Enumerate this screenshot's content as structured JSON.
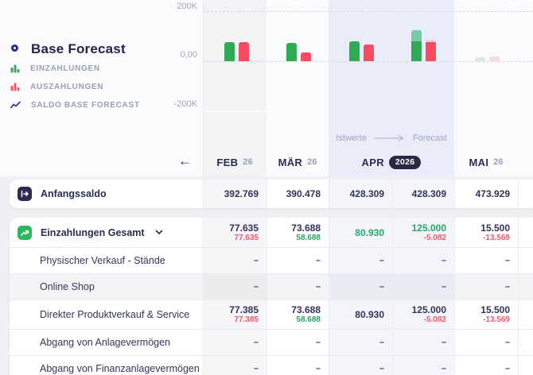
{
  "panel": {
    "title": "Base Forecast",
    "legend": [
      {
        "label": "EINZAHLUNGEN",
        "icon": "bars-green"
      },
      {
        "label": "AUSZAHLUNGEN",
        "icon": "bars-red"
      },
      {
        "label": "SALDO BASE FORECAST",
        "icon": "saldo-line"
      }
    ],
    "y_axis": {
      "top": "200K",
      "zero": "0,00",
      "bottom": "-200K"
    },
    "back_arrow": "←"
  },
  "header": {
    "istwerte_label": "Istwerte",
    "forecast_label": "Forecast",
    "columns": [
      {
        "month": "FEB",
        "year": "26"
      },
      {
        "month": "MÄR",
        "year": "26"
      },
      {
        "month": "APR",
        "badge": "2026"
      },
      {
        "month": "MAI",
        "year": "26"
      }
    ]
  },
  "colors": {
    "green_bar": "#2fab55",
    "teal_bar": "#76cba6",
    "red_bar": "#f94b61",
    "pink_bar": "#f9ccd4",
    "faint_green_bar": "#d4eee0",
    "faint_pink_bar": "#fadbe1",
    "green_text": "#27a567",
    "red_text": "#f4566d",
    "navy": "#2b2b52",
    "apr_band": "#e9edf9"
  },
  "chart_data": {
    "type": "bar",
    "title": "Base Forecast",
    "categories": [
      "FEB 26",
      "MÄR 26",
      "APR 2026 Istwerte",
      "APR 2026 Forecast",
      "MAI 26"
    ],
    "series": [
      {
        "name": "Einzahlungen",
        "values": [
          77635,
          73688,
          80930,
          125000,
          15500
        ]
      },
      {
        "name": "Auszahlungen (estimated from bar heights)",
        "values": [
          77635,
          35000,
          67000,
          84000,
          20000
        ]
      }
    ],
    "ylabel_ticks": [
      "200K",
      "0,00",
      "-200K"
    ],
    "ylim": [
      -200000,
      250000
    ],
    "grid": "dashed horizontal",
    "legend_position": "left",
    "bars": [
      {
        "center": 297,
        "ein": [
          [
            77635,
            "green"
          ]
        ],
        "aus": [
          [
            77635,
            "red"
          ]
        ]
      },
      {
        "center": 375,
        "ein": [
          [
            73688,
            "green"
          ]
        ],
        "aus": [
          [
            35000,
            "red"
          ]
        ]
      },
      {
        "center": 454,
        "ein": [
          [
            80930,
            "green"
          ]
        ],
        "aus": [
          [
            67000,
            "red"
          ]
        ]
      },
      {
        "center": 532,
        "ein": [
          [
            80930,
            "green"
          ],
          [
            44070,
            "teal"
          ]
        ],
        "aus": [
          [
            75000,
            "red"
          ],
          [
            9000,
            "pink"
          ]
        ]
      },
      {
        "center": 612,
        "ein": [
          [
            15500,
            "faint_green"
          ]
        ],
        "aus": [
          [
            20000,
            "faint_pink"
          ]
        ]
      }
    ]
  },
  "table": {
    "col_tints": {
      "white_row": [
        "#f6f6f8",
        "",
        "#f3f5fb",
        "#f3f5fb",
        ""
      ],
      "gray_row": [
        "#ececef",
        "#f4f4f6",
        "#e9ebf5",
        "#e9ebf5",
        "#f4f4f6"
      ]
    },
    "rows": [
      {
        "card": 1,
        "label": "Anfangssaldo",
        "icon": "start-balance",
        "bold": true,
        "h": 36,
        "cells": [
          {
            "main": "392.769"
          },
          {
            "main": "390.478"
          },
          {
            "main": "428.309"
          },
          {
            "main": "428.309"
          },
          {
            "main": "473.929"
          }
        ]
      },
      {
        "card": 2,
        "label": "Einzahlungen Gesamt",
        "icon": "trend-up",
        "chevron": true,
        "bold": true,
        "h": 37,
        "cells": [
          {
            "main": "77.635",
            "sub": "77.635",
            "sub_color": "red"
          },
          {
            "main": "73.688",
            "sub": "58.688",
            "sub_color": "green"
          },
          {
            "main": "80.930",
            "main_color": "green"
          },
          {
            "main": "125.000",
            "main_color": "green",
            "sub": "-5.082",
            "sub_color": "red"
          },
          {
            "main": "15.500",
            "sub": "-13.569",
            "sub_color": "red"
          }
        ]
      },
      {
        "card": 2,
        "label": "Physischer Verkauf - Stände",
        "indent": true,
        "h": 33,
        "cells": [
          {
            "dash": true
          },
          {
            "dash": true
          },
          {
            "dash": true
          },
          {
            "dash": true
          },
          {
            "dash": true
          }
        ]
      },
      {
        "card": 2,
        "label": "Online Shop",
        "indent": true,
        "shade": "gray",
        "h": 33,
        "cells": [
          {
            "dash": true
          },
          {
            "dash": true
          },
          {
            "dash": true
          },
          {
            "dash": true
          },
          {
            "dash": true
          }
        ]
      },
      {
        "card": 2,
        "label": "Direkter Produktverkauf & Service",
        "indent": true,
        "h": 37,
        "cells": [
          {
            "main": "77.385",
            "sub": "77.385",
            "sub_color": "red"
          },
          {
            "main": "73.688",
            "sub": "58.688",
            "sub_color": "green"
          },
          {
            "main": "80.930"
          },
          {
            "main": "125.000",
            "sub": "-5.082",
            "sub_color": "red"
          },
          {
            "main": "15.500",
            "sub": "-13.569",
            "sub_color": "red"
          }
        ]
      },
      {
        "card": 2,
        "label": "Abgang von Anlagevermögen",
        "indent": true,
        "h": 33,
        "cells": [
          {
            "dash": true
          },
          {
            "dash": true
          },
          {
            "dash": true
          },
          {
            "dash": true
          },
          {
            "dash": true
          }
        ]
      },
      {
        "card": 2,
        "label": "Abgang von Finanzanlagevermögen",
        "indent": true,
        "h": 33,
        "cells": [
          {
            "dash": true
          },
          {
            "dash": true
          },
          {
            "dash": true
          },
          {
            "dash": true
          },
          {
            "dash": true
          }
        ]
      }
    ]
  }
}
